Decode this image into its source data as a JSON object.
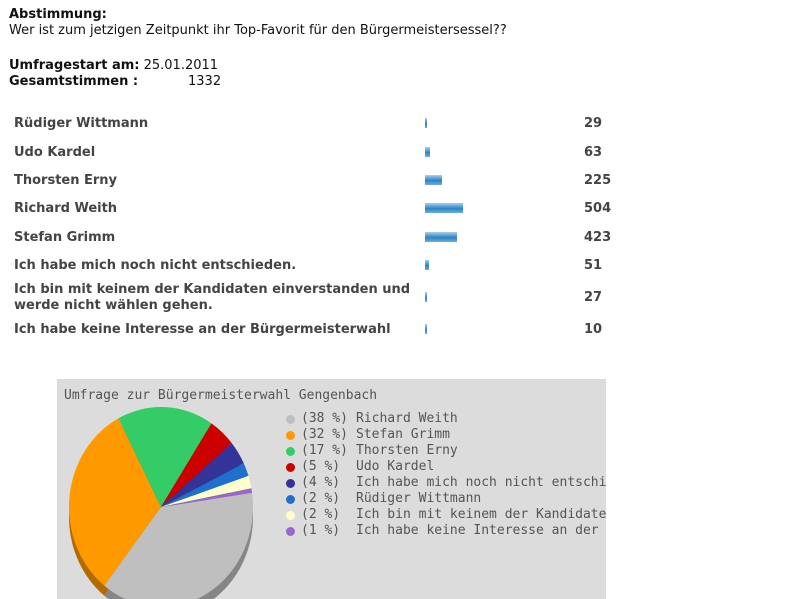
{
  "poll": {
    "heading": "Abstimmung:",
    "question": "Wer ist zum jetzigen Zeitpunkt ihr Top-Favorit für den Bürgermeistersessel??",
    "start_label": "Umfragestart am:",
    "start_date": "25.01.2011",
    "total_label": "Gesamtstimmen :",
    "total_value": "1332",
    "options": [
      {
        "label": "Rüdiger Wittmann",
        "votes": "29"
      },
      {
        "label": "Udo Kardel",
        "votes": "63"
      },
      {
        "label": "Thorsten Erny",
        "votes": "225"
      },
      {
        "label": "Richard Weith",
        "votes": "504"
      },
      {
        "label": "Stefan Grimm",
        "votes": "423"
      },
      {
        "label": "Ich habe mich noch nicht entschieden.",
        "votes": "51"
      },
      {
        "label": "Ich bin mit keinem der Kandidaten einverstanden und werde nicht wählen gehen.",
        "votes": "27"
      },
      {
        "label": "Ich habe keine Interesse an der Bürgermeisterwahl",
        "votes": "10"
      }
    ]
  },
  "chart_data": {
    "type": "pie",
    "title": "Umfrage zur Bürgermeisterwahl Gengenbach",
    "legend_position": "right",
    "slices": [
      {
        "name": "Richard Weith",
        "pct_label": "(38 %)",
        "value": 504,
        "color": "#bfbfbf"
      },
      {
        "name": "Stefan Grimm",
        "pct_label": "(32 %)",
        "value": 423,
        "color": "#ff9900"
      },
      {
        "name": "Thorsten Erny",
        "pct_label": "(17 %)",
        "value": 225,
        "color": "#33cc66"
      },
      {
        "name": "Udo Kardel",
        "pct_label": "(5 %)",
        "value": 63,
        "color": "#cc0000"
      },
      {
        "name": "Ich habe mich noch nicht entschieden.",
        "pct_label": "(4 %)",
        "value": 51,
        "color": "#333399"
      },
      {
        "name": "Rüdiger Wittmann",
        "pct_label": "(2 %)",
        "value": 29,
        "color": "#1f6fcc"
      },
      {
        "name": "Ich bin mit keinem der Kandidaten einverstanden und werde nicht wählen gehen.",
        "pct_label": "(2 %)",
        "value": 27,
        "color": "#ffffcc"
      },
      {
        "name": "Ich habe keine Interesse an der Bürgermeisterwahl",
        "pct_label": "(1 %)",
        "value": 10,
        "color": "#9966cc"
      }
    ]
  }
}
